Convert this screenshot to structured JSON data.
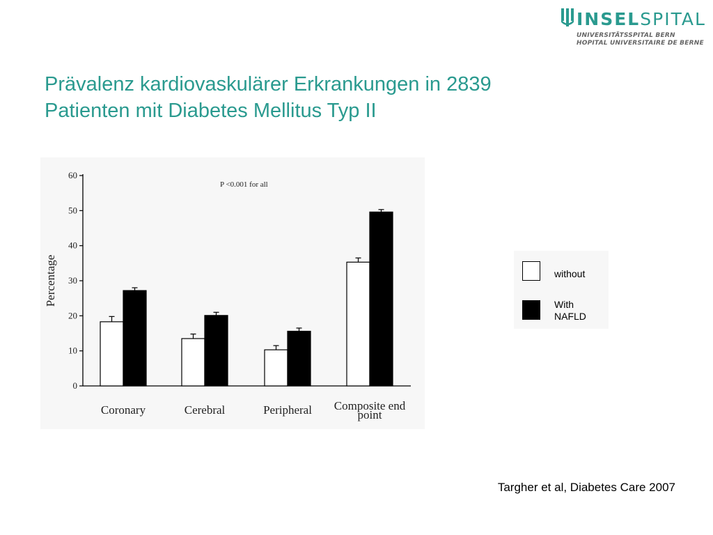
{
  "logo": {
    "word_bold": "INSEL",
    "word_light": "SPITAL",
    "line1": "UNIVERSITÄTSSPITAL BERN",
    "line2": "HOPITAL UNIVERSITAIRE DE BERNE",
    "icon": "inselspital-logo-icon",
    "color": "#2a9a8f"
  },
  "title": {
    "line1": "Prävalenz kardiovaskulärer Erkrankungen  in 2839",
    "line2": "Patienten mit Diabetes Mellitus Typ II",
    "color": "#2a9a8f"
  },
  "chart_data": {
    "type": "bar",
    "title": "",
    "annotation": "P <0.001 for all",
    "xlabel": "",
    "ylabel": "Percentage",
    "ylim": [
      0,
      60
    ],
    "yticks": [
      0,
      10,
      20,
      30,
      40,
      50,
      60
    ],
    "categories": [
      "Coronary",
      "Cerebral",
      "Peripheral",
      "Composite end point"
    ],
    "category_lines": [
      [
        "Coronary"
      ],
      [
        "Cerebral"
      ],
      [
        "Peripheral"
      ],
      [
        "Composite end",
        "point"
      ]
    ],
    "series": [
      {
        "name": "without",
        "color": "#ffffff",
        "values": [
          18.3,
          13.5,
          10.3,
          35.3
        ],
        "error": [
          1.5,
          1.3,
          1.2,
          1.2
        ]
      },
      {
        "name": "With NAFLD",
        "color": "#000000",
        "values": [
          27.2,
          20.1,
          15.6,
          49.6
        ],
        "error": [
          0.8,
          0.9,
          0.9,
          0.7
        ]
      }
    ],
    "grid": false
  },
  "legend": {
    "items": [
      {
        "label": "without",
        "swatch": "#ffffff"
      },
      {
        "label_line1": "With",
        "label_line2": "NAFLD",
        "swatch": "#000000"
      }
    ]
  },
  "citation": "Targher et al, Diabetes Care 2007"
}
